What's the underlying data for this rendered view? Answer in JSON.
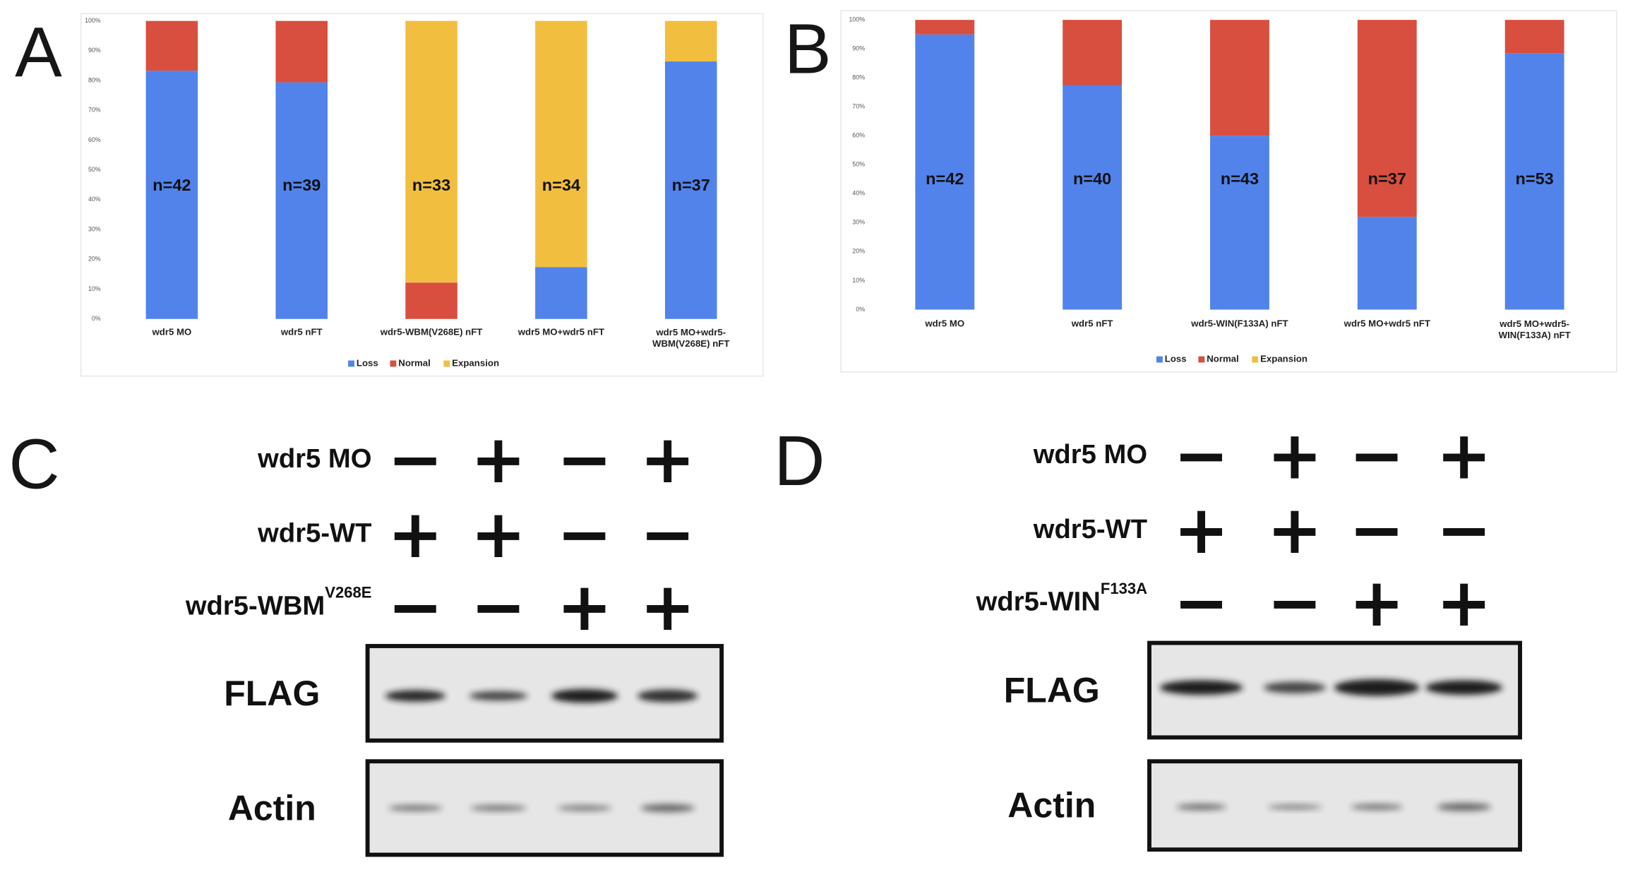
{
  "panel_letters": [
    "A",
    "B",
    "C",
    "D"
  ],
  "chart_data": [
    {
      "type": "bar",
      "stacked": true,
      "categories": [
        "wdr5 MO",
        "wdr5 nFT",
        "wdr5-WBM(V268E) nFT",
        "wdr5 MO+wdr5 nFT",
        "wdr5 MO+wdr5-WBM(V268E) nFT"
      ],
      "series": [
        {
          "name": "Loss",
          "color": "#5183eb",
          "values": [
            83.3,
            79.4,
            0,
            17.4,
            86.4
          ]
        },
        {
          "name": "Normal",
          "color": "#d84e3f",
          "values": [
            16.7,
            20.6,
            12.2,
            0,
            0
          ]
        },
        {
          "name": "Expansion",
          "color": "#f1be3f",
          "values": [
            0,
            0,
            87.8,
            82.6,
            13.6
          ]
        }
      ],
      "annotations": [
        "n=42",
        "n=39",
        "n=33",
        "n=34",
        "n=37"
      ],
      "ylim": [
        0,
        100
      ],
      "yticks": [
        {
          "value": 0,
          "label": "0%"
        },
        {
          "value": 10,
          "label": "10%"
        },
        {
          "value": 20,
          "label": "20%"
        },
        {
          "value": 30,
          "label": "30%"
        },
        {
          "value": 40,
          "label": "40%"
        },
        {
          "value": 50,
          "label": "50%"
        },
        {
          "value": 60,
          "label": "60%"
        },
        {
          "value": 70,
          "label": "70%"
        },
        {
          "value": 80,
          "label": "80%"
        },
        {
          "value": 90,
          "label": "90%"
        },
        {
          "value": 100,
          "label": "100%"
        }
      ],
      "legend": "bottom"
    },
    {
      "type": "bar",
      "stacked": true,
      "categories": [
        "wdr5 MO",
        "wdr5 nFT",
        "wdr5-WIN(F133A) nFT",
        "wdr5 MO+wdr5 nFT",
        "wdr5 MO+wdr5-WIN(F133A) nFT"
      ],
      "series": [
        {
          "name": "Loss",
          "color": "#5183eb",
          "values": [
            95,
            77.5,
            60,
            32,
            88.5
          ]
        },
        {
          "name": "Normal",
          "color": "#d84e3f",
          "values": [
            5,
            22.5,
            40,
            68,
            11.5
          ]
        },
        {
          "name": "Expansion",
          "color": "#f1be3f",
          "values": [
            0,
            0,
            0,
            0,
            0
          ]
        }
      ],
      "annotations": [
        "n=42",
        "n=40",
        "n=43",
        "n=37",
        "n=53"
      ],
      "ylim": [
        0,
        100
      ],
      "yticks": [
        {
          "value": 0,
          "label": "0%"
        },
        {
          "value": 10,
          "label": "10%"
        },
        {
          "value": 20,
          "label": "20%"
        },
        {
          "value": 30,
          "label": "30%"
        },
        {
          "value": 40,
          "label": "40%"
        },
        {
          "value": 50,
          "label": "50%"
        },
        {
          "value": 60,
          "label": "60%"
        },
        {
          "value": 70,
          "label": "70%"
        },
        {
          "value": 80,
          "label": "80%"
        },
        {
          "value": 90,
          "label": "90%"
        },
        {
          "value": 100,
          "label": "100%"
        }
      ],
      "legend": "bottom"
    }
  ],
  "blots": [
    {
      "conditions": [
        {
          "label": "wdr5 MO",
          "signs": [
            "−",
            "+",
            "−",
            "+"
          ]
        },
        {
          "label": "wdr5-WT",
          "signs": [
            "+",
            "+",
            "−",
            "−"
          ]
        },
        {
          "label": "wdr5-WBM",
          "sup": "V268E",
          "signs": [
            "−",
            "−",
            "+",
            "+"
          ]
        }
      ],
      "bands": [
        "FLAG",
        "Actin"
      ]
    },
    {
      "conditions": [
        {
          "label": "wdr5 MO",
          "signs": [
            "−",
            "+",
            "−",
            "+"
          ]
        },
        {
          "label": "wdr5-WT",
          "signs": [
            "+",
            "+",
            "−",
            "−"
          ]
        },
        {
          "label": "wdr5-WIN",
          "sup": "F133A",
          "signs": [
            "−",
            "−",
            "+",
            "+"
          ]
        }
      ],
      "bands": [
        "FLAG",
        "Actin"
      ]
    }
  ]
}
